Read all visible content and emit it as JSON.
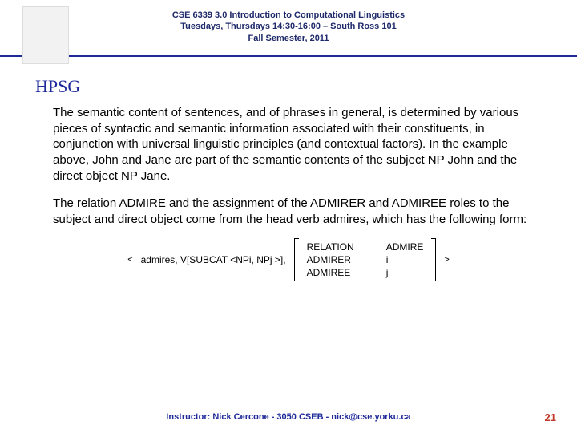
{
  "header": {
    "line1": "CSE 6339 3.0 Introduction to Computational Linguistics",
    "line2": "Tuesdays, Thursdays 14:30-16:00 – South Ross 101",
    "line3": "Fall Semester, 2011"
  },
  "title": "HPSG",
  "para1": "The semantic content of sentences, and of phrases in general, is determined by various pieces of syntactic and semantic information associated with their constituents, in conjunction with universal linguistic principles (and contextual factors). In the example above, John and Jane are part of the semantic contents of the subject NP John and the direct object NP Jane.",
  "para2": "The relation ADMIRE and the assignment of the ADMIRER and ADMIREE roles to the subject and direct object come from the head verb admires, which has the following form:",
  "diagram": {
    "left_angle": "<",
    "admires_text": "admires, V[SUBCAT <NPi, NPj >],",
    "labels": {
      "a": "RELATION",
      "b": "ADMIRER",
      "c": "ADMIREE"
    },
    "values": {
      "a": "ADMIRE",
      "b": "i",
      "c": "j"
    },
    "right_angle": ">"
  },
  "footer": {
    "text": "Instructor: Nick Cercone - 3050 CSEB - nick@cse.yorku.ca",
    "page": "21"
  },
  "colors": {
    "header_text": "#1f2a6b",
    "rule": "#1f2a9a",
    "title": "#1f2a9a",
    "body": "#000000",
    "footer": "#1f2a9a",
    "page_num": "#c0392b"
  }
}
